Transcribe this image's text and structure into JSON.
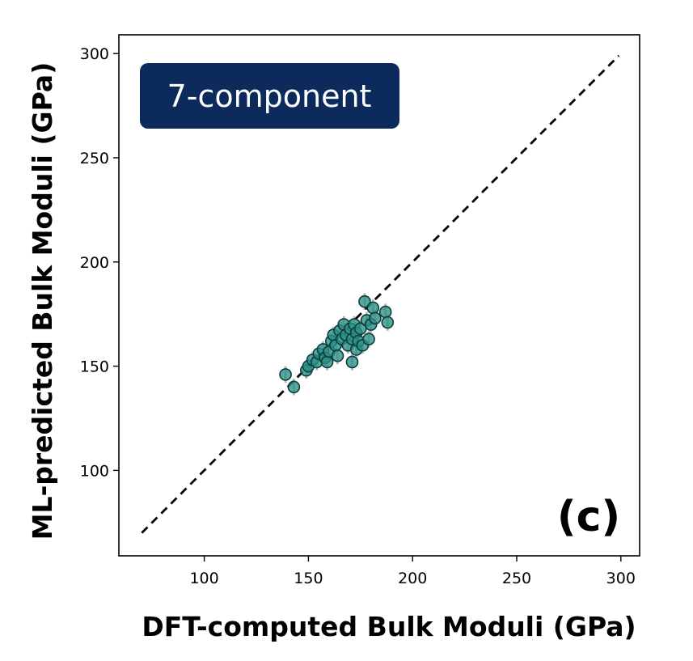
{
  "chart_data": {
    "type": "scatter",
    "title": "",
    "xlabel": "DFT-computed  Bulk Moduli (GPa)",
    "ylabel": "ML-predicted Bulk Moduli (GPa)",
    "xlim": [
      59,
      309
    ],
    "ylim": [
      59,
      309
    ],
    "xticks": [
      100,
      150,
      200,
      250,
      300
    ],
    "yticks": [
      100,
      150,
      200,
      250,
      300
    ],
    "grid": false,
    "legend": "none",
    "annotation_box": "7-component",
    "panel_label": "(c)",
    "parity_line": {
      "x": [
        70,
        299
      ],
      "y": [
        70,
        299
      ],
      "style": "dashed",
      "color": "#000000"
    },
    "marker_color": "#2a8f88",
    "marker_edge": "#0b3e3b",
    "errorbar_color": "#b8b8b8",
    "series": [
      {
        "points": [
          {
            "x": 139,
            "y": 146,
            "err": 4
          },
          {
            "x": 143,
            "y": 140,
            "err": 4
          },
          {
            "x": 149,
            "y": 148,
            "err": 4
          },
          {
            "x": 150,
            "y": 150,
            "err": 4
          },
          {
            "x": 152,
            "y": 153,
            "err": 4
          },
          {
            "x": 154,
            "y": 152,
            "err": 4
          },
          {
            "x": 155,
            "y": 156,
            "err": 4
          },
          {
            "x": 157,
            "y": 158,
            "err": 4
          },
          {
            "x": 158,
            "y": 154,
            "err": 4
          },
          {
            "x": 159,
            "y": 152,
            "err": 4
          },
          {
            "x": 160,
            "y": 157,
            "err": 4
          },
          {
            "x": 161,
            "y": 162,
            "err": 4
          },
          {
            "x": 162,
            "y": 165,
            "err": 4
          },
          {
            "x": 163,
            "y": 160,
            "err": 4
          },
          {
            "x": 164,
            "y": 155,
            "err": 4
          },
          {
            "x": 165,
            "y": 167,
            "err": 4
          },
          {
            "x": 166,
            "y": 163,
            "err": 4
          },
          {
            "x": 167,
            "y": 170,
            "err": 4
          },
          {
            "x": 168,
            "y": 165,
            "err": 4
          },
          {
            "x": 169,
            "y": 160,
            "err": 4
          },
          {
            "x": 170,
            "y": 168,
            "err": 4
          },
          {
            "x": 171,
            "y": 152,
            "err": 4
          },
          {
            "x": 171,
            "y": 163,
            "err": 4
          },
          {
            "x": 172,
            "y": 170,
            "err": 4
          },
          {
            "x": 173,
            "y": 158,
            "err": 4
          },
          {
            "x": 173,
            "y": 166,
            "err": 4
          },
          {
            "x": 174,
            "y": 162,
            "err": 4
          },
          {
            "x": 175,
            "y": 168,
            "err": 4
          },
          {
            "x": 176,
            "y": 160,
            "err": 4
          },
          {
            "x": 177,
            "y": 181,
            "err": 4
          },
          {
            "x": 178,
            "y": 172,
            "err": 4
          },
          {
            "x": 179,
            "y": 163,
            "err": 4
          },
          {
            "x": 180,
            "y": 170,
            "err": 4
          },
          {
            "x": 181,
            "y": 178,
            "err": 4
          },
          {
            "x": 182,
            "y": 173,
            "err": 4
          },
          {
            "x": 187,
            "y": 176,
            "err": 4
          },
          {
            "x": 188,
            "y": 171,
            "err": 4
          }
        ]
      }
    ]
  }
}
